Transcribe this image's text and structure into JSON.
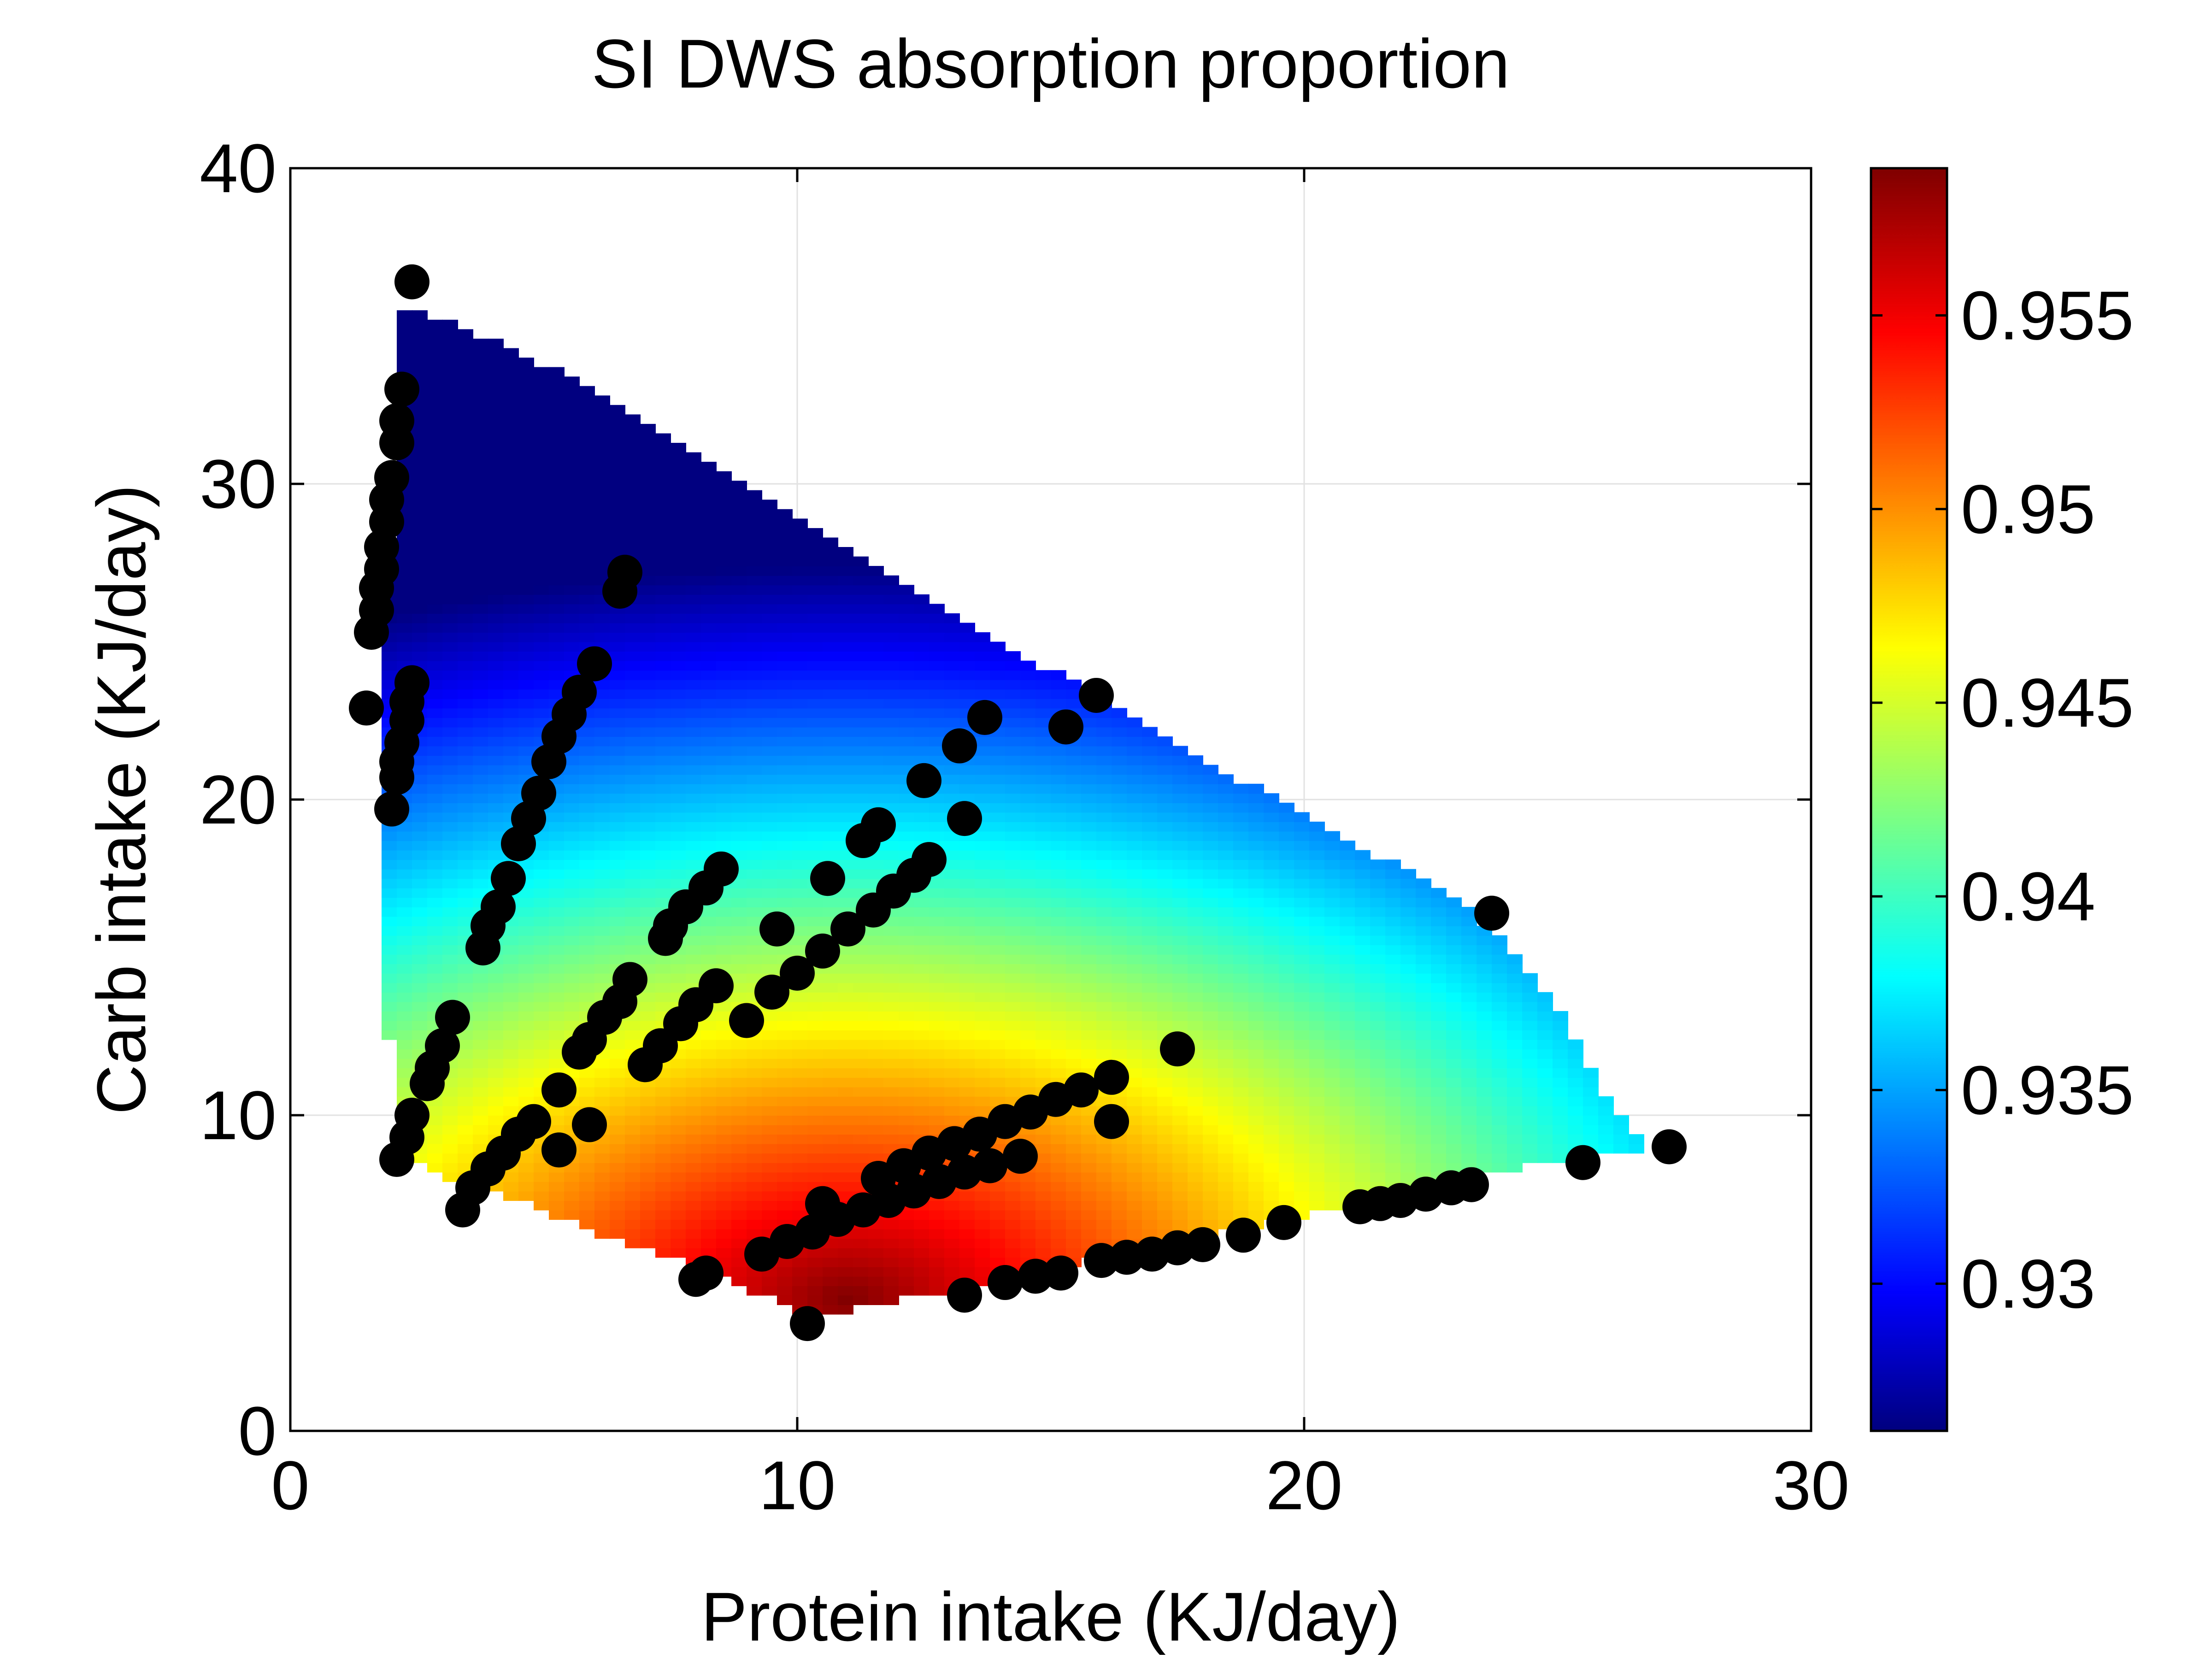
{
  "chart_data": {
    "type": "heatmap",
    "title": "SI DWS absorption proportion",
    "xlabel": "Protein intake (KJ/day)",
    "ylabel": "Carb intake (KJ/day)",
    "xlim": [
      0,
      30
    ],
    "ylim": [
      0,
      40
    ],
    "x_ticks": [
      0,
      10,
      20,
      30
    ],
    "y_ticks": [
      0,
      10,
      20,
      30,
      40
    ],
    "grid": true,
    "colormap": "jet",
    "colorbar": {
      "range": [
        0.9262,
        0.9588
      ],
      "ticks": [
        0.93,
        0.935,
        0.94,
        0.945,
        0.95,
        0.955
      ],
      "tick_labels": [
        "0.93",
        "0.935",
        "0.94",
        "0.945",
        "0.95",
        "0.955"
      ],
      "placement": "right"
    },
    "surface_region": [
      [
        2.0,
        35.7
      ],
      [
        3.0,
        35.2
      ],
      [
        4.0,
        34.6
      ],
      [
        5.0,
        33.8
      ],
      [
        6.0,
        32.9
      ],
      [
        7.0,
        31.9
      ],
      [
        8.0,
        31.0
      ],
      [
        9.0,
        30.0
      ],
      [
        10.0,
        29.0
      ],
      [
        11.0,
        28.0
      ],
      [
        12.0,
        27.1
      ],
      [
        13.0,
        26.1
      ],
      [
        14.0,
        25.1
      ],
      [
        15.0,
        24.1
      ],
      [
        16.0,
        23.2
      ],
      [
        17.0,
        22.3
      ],
      [
        18.0,
        21.3
      ],
      [
        19.0,
        20.4
      ],
      [
        20.0,
        19.5
      ],
      [
        21.0,
        18.6
      ],
      [
        22.0,
        17.8
      ],
      [
        23.0,
        16.8
      ],
      [
        24.0,
        15.5
      ],
      [
        25.0,
        13.5
      ],
      [
        26.0,
        10.5
      ],
      [
        26.8,
        9.0
      ],
      [
        25.0,
        8.5
      ],
      [
        24.0,
        8.3
      ],
      [
        23.0,
        7.9
      ],
      [
        22.0,
        7.4
      ],
      [
        21.0,
        7.1
      ],
      [
        20.0,
        6.8
      ],
      [
        19.0,
        6.5
      ],
      [
        18.0,
        6.1
      ],
      [
        17.0,
        5.8
      ],
      [
        16.0,
        5.5
      ],
      [
        15.0,
        5.2
      ],
      [
        14.0,
        4.8
      ],
      [
        13.0,
        4.4
      ],
      [
        12.0,
        4.2
      ],
      [
        11.0,
        3.8
      ],
      [
        10.0,
        3.8
      ],
      [
        9.0,
        4.5
      ],
      [
        8.0,
        5.2
      ],
      [
        7.0,
        5.8
      ],
      [
        6.0,
        6.3
      ],
      [
        5.0,
        7.0
      ],
      [
        4.0,
        7.5
      ],
      [
        3.0,
        8.0
      ],
      [
        2.2,
        8.8
      ],
      [
        2.0,
        10.8
      ],
      [
        1.8,
        17.0
      ],
      [
        1.8,
        22.0
      ],
      [
        2.0,
        30.0
      ],
      [
        2.0,
        35.7
      ]
    ],
    "surface_peak": {
      "x": 11,
      "y": 4.2
    },
    "series": [
      {
        "type": "scatter",
        "marker": "filled-circle",
        "color": "#000000",
        "points": [
          [
            2.4,
            36.4
          ],
          [
            2.2,
            33.0
          ],
          [
            2.1,
            32.0
          ],
          [
            2.1,
            31.3
          ],
          [
            2.0,
            30.2
          ],
          [
            1.9,
            29.5
          ],
          [
            1.9,
            28.8
          ],
          [
            1.8,
            28.0
          ],
          [
            1.8,
            27.3
          ],
          [
            1.7,
            26.7
          ],
          [
            1.7,
            26.0
          ],
          [
            1.6,
            25.3
          ],
          [
            1.5,
            22.9
          ],
          [
            2.4,
            23.7
          ],
          [
            2.3,
            23.1
          ],
          [
            2.3,
            22.5
          ],
          [
            2.2,
            21.8
          ],
          [
            2.1,
            21.2
          ],
          [
            2.1,
            20.7
          ],
          [
            2.0,
            19.7
          ],
          [
            3.2,
            13.1
          ],
          [
            3.0,
            12.2
          ],
          [
            2.8,
            11.5
          ],
          [
            2.7,
            11.0
          ],
          [
            2.4,
            10.0
          ],
          [
            2.3,
            9.3
          ],
          [
            2.1,
            8.6
          ],
          [
            6.6,
            27.2
          ],
          [
            6.5,
            26.6
          ],
          [
            6.0,
            24.3
          ],
          [
            5.7,
            23.4
          ],
          [
            5.5,
            22.7
          ],
          [
            5.3,
            22.0
          ],
          [
            5.1,
            21.2
          ],
          [
            4.9,
            20.2
          ],
          [
            4.7,
            19.4
          ],
          [
            4.5,
            18.6
          ],
          [
            4.3,
            17.5
          ],
          [
            4.1,
            16.6
          ],
          [
            3.9,
            16.0
          ],
          [
            3.8,
            15.3
          ],
          [
            6.7,
            14.3
          ],
          [
            6.5,
            13.6
          ],
          [
            6.2,
            13.1
          ],
          [
            5.9,
            12.4
          ],
          [
            5.7,
            12.0
          ],
          [
            5.3,
            10.8
          ],
          [
            4.8,
            9.8
          ],
          [
            4.5,
            9.4
          ],
          [
            4.2,
            8.8
          ],
          [
            3.9,
            8.3
          ],
          [
            3.6,
            7.7
          ],
          [
            3.4,
            7.0
          ],
          [
            5.3,
            8.9
          ],
          [
            5.9,
            9.7
          ],
          [
            8.5,
            17.8
          ],
          [
            8.2,
            17.2
          ],
          [
            7.8,
            16.6
          ],
          [
            7.5,
            16.0
          ],
          [
            7.4,
            15.6
          ],
          [
            8.4,
            14.1
          ],
          [
            8.0,
            13.5
          ],
          [
            7.7,
            12.9
          ],
          [
            7.3,
            12.2
          ],
          [
            7.0,
            11.6
          ],
          [
            9.6,
            15.9
          ],
          [
            9.0,
            13.0
          ],
          [
            9.5,
            13.9
          ],
          [
            10.0,
            14.5
          ],
          [
            10.5,
            15.2
          ],
          [
            11.0,
            15.9
          ],
          [
            11.5,
            16.5
          ],
          [
            11.9,
            17.1
          ],
          [
            12.3,
            17.6
          ],
          [
            12.6,
            18.1
          ],
          [
            10.6,
            17.5
          ],
          [
            11.3,
            18.7
          ],
          [
            11.6,
            19.2
          ],
          [
            12.5,
            20.6
          ],
          [
            13.2,
            21.7
          ],
          [
            13.3,
            19.4
          ],
          [
            13.7,
            22.6
          ],
          [
            15.3,
            22.3
          ],
          [
            15.9,
            23.3
          ],
          [
            23.7,
            16.4
          ],
          [
            17.5,
            12.1
          ],
          [
            16.2,
            11.2
          ],
          [
            15.6,
            10.8
          ],
          [
            15.1,
            10.5
          ],
          [
            14.6,
            10.1
          ],
          [
            14.1,
            9.8
          ],
          [
            13.6,
            9.4
          ],
          [
            13.1,
            9.1
          ],
          [
            12.6,
            8.8
          ],
          [
            12.1,
            8.4
          ],
          [
            11.6,
            8.0
          ],
          [
            14.4,
            8.7
          ],
          [
            13.8,
            8.4
          ],
          [
            13.3,
            8.2
          ],
          [
            12.8,
            7.9
          ],
          [
            12.3,
            7.6
          ],
          [
            11.8,
            7.3
          ],
          [
            11.3,
            7.0
          ],
          [
            10.8,
            6.7
          ],
          [
            10.3,
            6.3
          ],
          [
            9.8,
            6.0
          ],
          [
            9.3,
            5.6
          ],
          [
            16.2,
            9.8
          ],
          [
            10.5,
            7.2
          ],
          [
            8.2,
            5.0
          ],
          [
            8.0,
            4.8
          ],
          [
            10.2,
            3.4
          ],
          [
            13.3,
            4.3
          ],
          [
            14.1,
            4.7
          ],
          [
            14.7,
            4.9
          ],
          [
            15.2,
            5.0
          ],
          [
            16.0,
            5.4
          ],
          [
            16.5,
            5.5
          ],
          [
            17.0,
            5.6
          ],
          [
            17.5,
            5.8
          ],
          [
            18.0,
            5.9
          ],
          [
            18.8,
            6.2
          ],
          [
            19.6,
            6.6
          ],
          [
            21.1,
            7.1
          ],
          [
            21.5,
            7.2
          ],
          [
            21.9,
            7.3
          ],
          [
            22.4,
            7.5
          ],
          [
            22.9,
            7.7
          ],
          [
            23.3,
            7.8
          ],
          [
            25.5,
            8.5
          ],
          [
            27.2,
            9.0
          ]
        ]
      }
    ]
  }
}
